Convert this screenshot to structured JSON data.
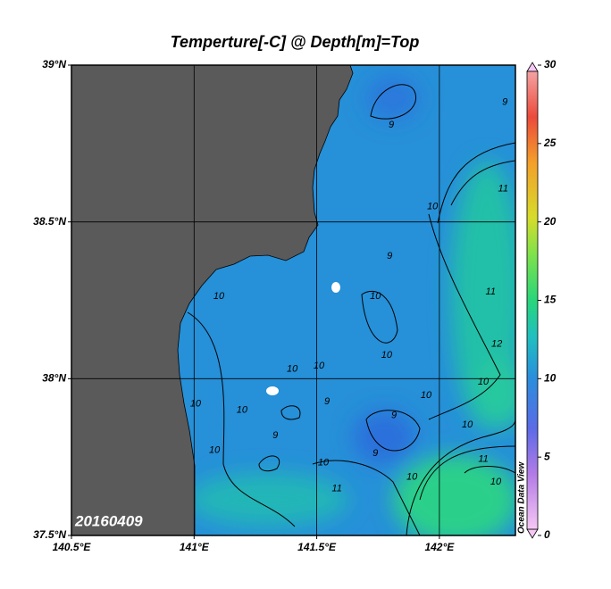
{
  "map": {
    "title": "Temperture[-C] @ Depth[m]=Top",
    "stamp": "20160409",
    "watermark": "Ocean Data View",
    "xlim": [
      140.5,
      142.31
    ],
    "ylim": [
      37.5,
      39
    ],
    "xticks": [
      {
        "value": 140.5,
        "label": "140.5°E"
      },
      {
        "value": 141,
        "label": "141°E"
      },
      {
        "value": 141.5,
        "label": "141.5°E"
      },
      {
        "value": 142,
        "label": "142°E"
      }
    ],
    "yticks": [
      {
        "value": 37.5,
        "label": "37.5°N"
      },
      {
        "value": 38,
        "label": "38°N"
      },
      {
        "value": 38.5,
        "label": "38.5°N"
      },
      {
        "value": 39,
        "label": "39°N"
      }
    ],
    "grid": true,
    "colorbar": {
      "lim": [
        0,
        30
      ],
      "ticks": [
        0,
        5,
        10,
        15,
        20,
        25,
        30
      ]
    },
    "contour_labels": [
      {
        "value": 9,
        "lon": 141.804,
        "lat": 38.809
      },
      {
        "value": 9,
        "lon": 142.267,
        "lat": 38.881
      },
      {
        "value": 10,
        "lon": 141.972,
        "lat": 38.548
      },
      {
        "value": 11,
        "lon": 142.26,
        "lat": 38.605
      },
      {
        "value": 9,
        "lon": 141.797,
        "lat": 38.391
      },
      {
        "value": 10,
        "lon": 141.101,
        "lat": 38.263
      },
      {
        "value": 10,
        "lon": 141.739,
        "lat": 38.263
      },
      {
        "value": 11,
        "lon": 142.209,
        "lat": 38.277
      },
      {
        "value": 12,
        "lon": 142.234,
        "lat": 38.11
      },
      {
        "value": 10,
        "lon": 141.785,
        "lat": 38.075
      },
      {
        "value": 10,
        "lon": 141.509,
        "lat": 38.041
      },
      {
        "value": 10,
        "lon": 141.4,
        "lat": 38.03
      },
      {
        "value": 10,
        "lon": 142.179,
        "lat": 37.99
      },
      {
        "value": 10,
        "lon": 141.006,
        "lat": 37.919
      },
      {
        "value": 10,
        "lon": 141.195,
        "lat": 37.899
      },
      {
        "value": 9,
        "lon": 141.542,
        "lat": 37.927
      },
      {
        "value": 9,
        "lon": 141.815,
        "lat": 37.882
      },
      {
        "value": 10,
        "lon": 141.946,
        "lat": 37.947
      },
      {
        "value": 10,
        "lon": 142.114,
        "lat": 37.853
      },
      {
        "value": 9,
        "lon": 141.331,
        "lat": 37.819
      },
      {
        "value": 10,
        "lon": 141.083,
        "lat": 37.771
      },
      {
        "value": 9,
        "lon": 141.739,
        "lat": 37.762
      },
      {
        "value": 10,
        "lon": 141.527,
        "lat": 37.731
      },
      {
        "value": 11,
        "lon": 142.179,
        "lat": 37.743
      },
      {
        "value": 10,
        "lon": 142.23,
        "lat": 37.671
      },
      {
        "value": 11,
        "lon": 141.582,
        "lat": 37.649
      },
      {
        "value": 10,
        "lon": 141.888,
        "lat": 37.686
      }
    ]
  }
}
